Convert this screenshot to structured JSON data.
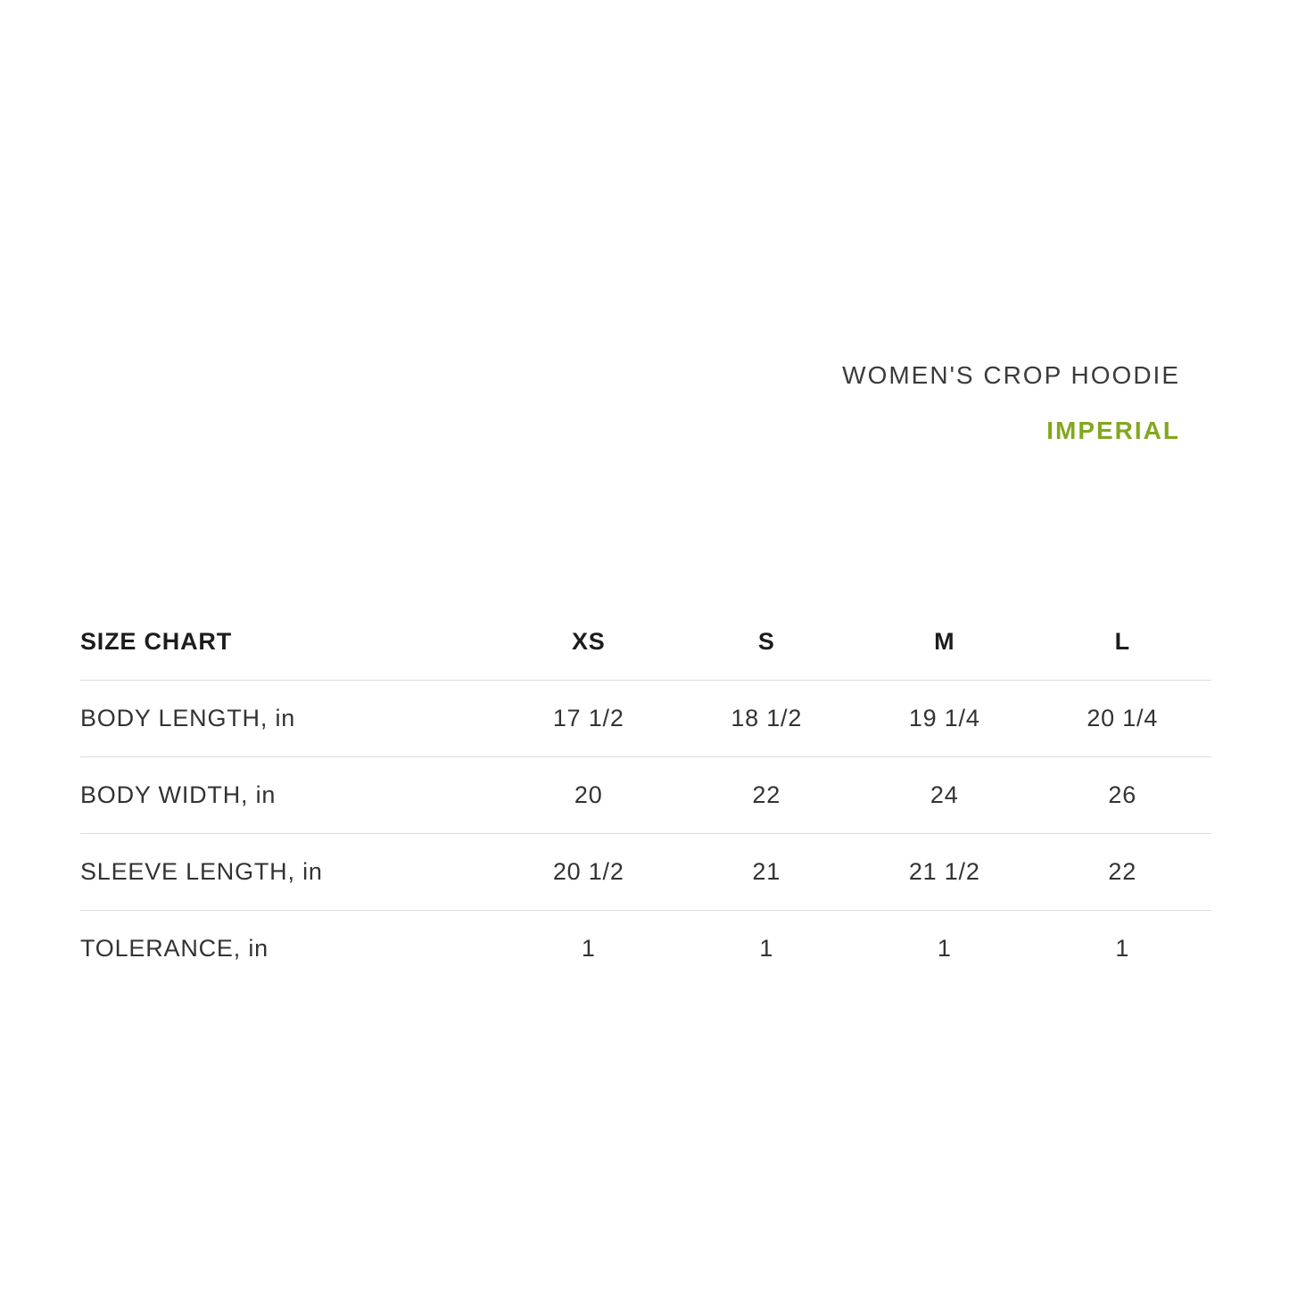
{
  "header": {
    "product_title": "WOMEN'S CROP HOODIE",
    "units_label": "IMPERIAL"
  },
  "colors": {
    "accent_green": "#83A71F",
    "text_dark": "#333333",
    "divider": "#DCDCDC",
    "background": "#FFFFFF"
  },
  "chart_data": {
    "type": "table",
    "title": "SIZE CHART",
    "product": "WOMEN'S CROP HOODIE",
    "units": "IMPERIAL",
    "columns": [
      "XS",
      "S",
      "M",
      "L"
    ],
    "rows": [
      {
        "label": "BODY LENGTH, in",
        "values": [
          "17 1/2",
          "18 1/2",
          "19 1/4",
          "20 1/4"
        ]
      },
      {
        "label": "BODY WIDTH, in",
        "values": [
          "20",
          "22",
          "24",
          "26"
        ]
      },
      {
        "label": "SLEEVE LENGTH, in",
        "values": [
          "20 1/2",
          "21",
          "21 1/2",
          "22"
        ]
      },
      {
        "label": "TOLERANCE, in",
        "values": [
          "1",
          "1",
          "1",
          "1"
        ]
      }
    ],
    "layout": {
      "dividers": "between header and rows, none after last row",
      "value_alignment": "center",
      "label_alignment": "left"
    }
  }
}
